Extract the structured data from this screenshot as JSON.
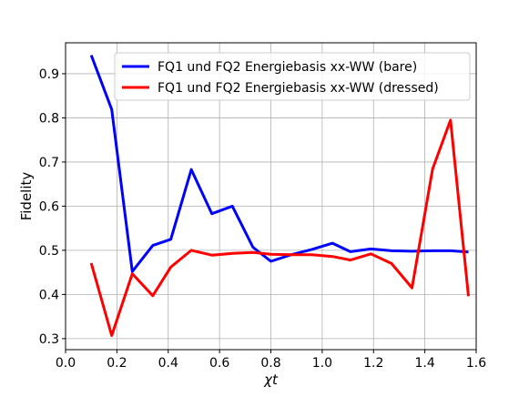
{
  "chart_data": {
    "type": "line",
    "xlabel": "χt",
    "ylabel": "Fidelity",
    "xlim": [
      0.0,
      1.6
    ],
    "ylim": [
      0.275,
      0.97
    ],
    "xticks": [
      0.0,
      0.2,
      0.4,
      0.6,
      0.8,
      1.0,
      1.2,
      1.4,
      1.6
    ],
    "xtick_labels": [
      "0.0",
      "0.2",
      "0.4",
      "0.6",
      "0.8",
      "1.0",
      "1.2",
      "1.4",
      "1.6"
    ],
    "yticks": [
      0.3,
      0.4,
      0.5,
      0.6,
      0.7,
      0.8,
      0.9
    ],
    "ytick_labels": [
      "0.3",
      "0.4",
      "0.5",
      "0.6",
      "0.7",
      "0.8",
      "0.9"
    ],
    "grid": true,
    "legend_position": "top-right",
    "x": [
      0.1,
      0.18,
      0.26,
      0.34,
      0.41,
      0.49,
      0.57,
      0.65,
      0.73,
      0.8,
      0.88,
      0.96,
      1.04,
      1.11,
      1.19,
      1.27,
      1.35,
      1.43,
      1.5,
      1.57
    ],
    "series": [
      {
        "name": "FQ1 und FQ2 Energiebasis xx-WW (bare)",
        "color": "#0000ff",
        "values": [
          0.942,
          0.819,
          0.452,
          0.511,
          0.525,
          0.683,
          0.583,
          0.6,
          0.507,
          0.475,
          0.49,
          0.502,
          0.516,
          0.497,
          0.503,
          0.499,
          0.498,
          0.499,
          0.499,
          0.496
        ]
      },
      {
        "name": "FQ1 und FQ2 Energiebasis xx-WW (dressed)",
        "color": "#ff0000",
        "values": [
          0.471,
          0.307,
          0.447,
          0.397,
          0.462,
          0.5,
          0.489,
          0.493,
          0.495,
          0.491,
          0.49,
          0.49,
          0.486,
          0.478,
          0.492,
          0.47,
          0.415,
          0.684,
          0.795,
          0.396
        ]
      }
    ]
  }
}
